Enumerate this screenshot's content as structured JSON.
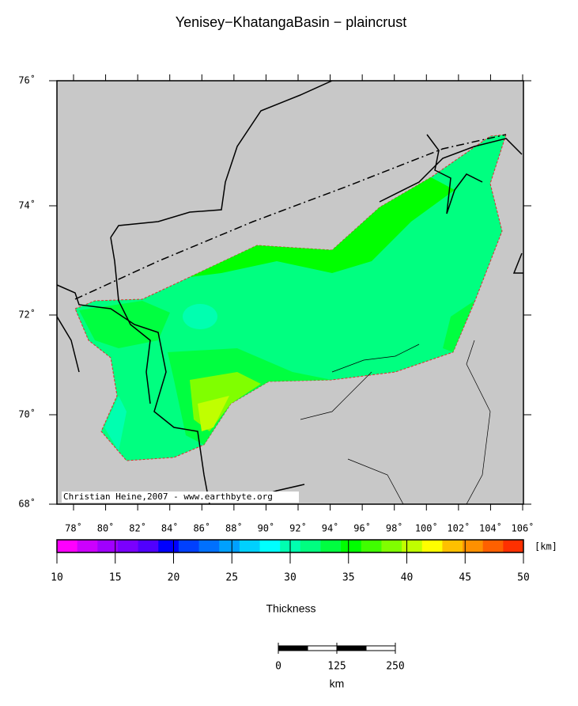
{
  "title": "Yenisey−KhatangaBasin − plaincrust",
  "map": {
    "lat_ticks": [
      {
        "value": 76,
        "label": "76˚"
      },
      {
        "value": 74,
        "label": "74˚"
      },
      {
        "value": 72,
        "label": "72˚"
      },
      {
        "value": 70,
        "label": "70˚"
      },
      {
        "value": 68,
        "label": "68˚"
      }
    ],
    "lon_ticks": [
      {
        "value": 78,
        "label": "78˚"
      },
      {
        "value": 80,
        "label": "80˚"
      },
      {
        "value": 82,
        "label": "82˚"
      },
      {
        "value": 84,
        "label": "84˚"
      },
      {
        "value": 86,
        "label": "86˚"
      },
      {
        "value": 88,
        "label": "88˚"
      },
      {
        "value": 90,
        "label": "90˚"
      },
      {
        "value": 92,
        "label": "92˚"
      },
      {
        "value": 94,
        "label": "94˚"
      },
      {
        "value": 96,
        "label": "96˚"
      },
      {
        "value": 98,
        "label": "98˚"
      },
      {
        "value": 100,
        "label": "100˚"
      },
      {
        "value": 102,
        "label": "102˚"
      },
      {
        "value": 104,
        "label": "104˚"
      },
      {
        "value": 106,
        "label": "106˚"
      }
    ],
    "credit": "Christian Heine,2007 - www.earthbyte.org"
  },
  "colorbar": {
    "range": [
      10,
      50
    ],
    "ticks": [
      10,
      15,
      20,
      25,
      30,
      35,
      40,
      45,
      50
    ],
    "colors": [
      "#ff00ff",
      "#cc00ff",
      "#a000ff",
      "#7a00ff",
      "#5000ff",
      "#0000ff",
      "#0040ff",
      "#0070ff",
      "#00a0ff",
      "#00d0ff",
      "#00ffff",
      "#00ffb0",
      "#00ff80",
      "#00ff40",
      "#00ff00",
      "#40ff00",
      "#80ff00",
      "#c0ff00",
      "#ffff00",
      "#ffc000",
      "#ff9000",
      "#ff6000",
      "#ff3000"
    ],
    "unit": "[km]",
    "label": "Thickness"
  },
  "scale_bar": {
    "range": [
      0,
      250
    ],
    "ticks": [
      0,
      125,
      250
    ],
    "unit": "km"
  }
}
